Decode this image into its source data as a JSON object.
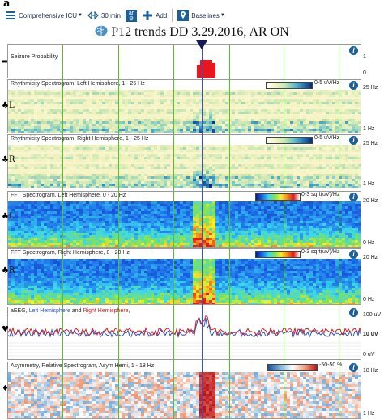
{
  "figure_letter": "a",
  "toolbar": {
    "montage_label": "Comprehensive ICU",
    "timespan_label": "30 min",
    "ar_label": "ar",
    "ar_sub": "⚙",
    "add_label": "Add",
    "baselines_label": "Baselines"
  },
  "title": "P12 trends DD 3.29.2016, AR ON",
  "colors": {
    "accent": "#1d5f96",
    "grid_line": "#5bbf2a",
    "cursor": "#3d50c8",
    "left_hemi": "#2b53c6",
    "right_hemi": "#d02020"
  },
  "panels": {
    "seizure": {
      "label": "Seizure Probability",
      "y_top": "1",
      "y_bottom": "0"
    },
    "rhythm_left": {
      "label": "Rhythmicity Spectrogram, Left Hemisphere, 1 - 25 Hz",
      "legend": "0-5 uV/Hz",
      "y_top": "25 Hz",
      "y_bottom": "1 Hz",
      "symbol": "♣L"
    },
    "rhythm_right": {
      "label": "Rhythmicity Spectrogram, Right Hemisphere, 1 - 25 Hz",
      "legend": "0-5 uV/Hz",
      "y_top": "25 Hz",
      "y_bottom": "1 Hz",
      "symbol": "♣R"
    },
    "fft_left": {
      "label": "FFT Spectrogram, Left Hemisphere, 0 - 20 Hz",
      "legend": "0-3 sqrt(uV)/Hz",
      "y_top": "20 Hz",
      "y_bottom": "0 Hz",
      "symbol": "♣L"
    },
    "fft_right": {
      "label": "FFT Spectrogram, Right Hemisphere, 0 - 20 Hz",
      "legend": "0-3 sqrt(uV)/Hz",
      "y_top": "20 Hz",
      "y_bottom": "0 Hz",
      "symbol": "♣R"
    },
    "aeeg": {
      "label_prefix": "aEEG, ",
      "label_left": "Left Hemisphere",
      "label_and": " and ",
      "label_right": "Right Hemisphere",
      "label_end": ",",
      "y_top": "100 uV",
      "y_mid": "10 uV",
      "y_bottom": "0 uV",
      "symbol": "♥"
    },
    "asym": {
      "label": "Asymmetry, Relative Spectrogram, Asym Hemi, 1 - 18 Hz",
      "legend": "-50-50 %",
      "y_top": "18 Hz",
      "y_bottom": "1 Hz",
      "symbol": "♦"
    }
  },
  "seizure_marker_symbol": "▬"
}
